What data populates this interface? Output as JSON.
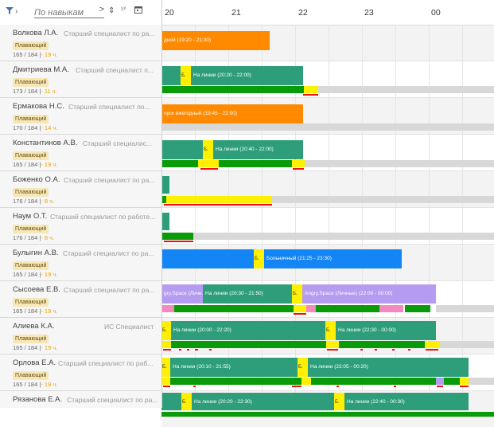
{
  "toolbar": {
    "filter_icon": "filter-icon",
    "search_placeholder": "По навыкам",
    "search_arrow": ">",
    "sort_icon": "sort-icon",
    "x_icon": "yx-icon",
    "calendar_icon": "calendar-icon"
  },
  "timeline": {
    "hours": [
      "20",
      "21",
      "22",
      "23",
      "00"
    ]
  },
  "employees": [
    {
      "name": "Волкова Л.А.",
      "role": "Старший специалист по ра...",
      "badge": "Плавающий",
      "hours": "165 / 184 |",
      "overtime": "- 19 ч."
    },
    {
      "name": "Дмитриева М.А.",
      "role": "Старший специалист п...",
      "badge": "Плавающий",
      "hours": "173 / 184 |",
      "overtime": "- 11 ч."
    },
    {
      "name": "Ермакова Н.С.",
      "role": "Старший специалист по...",
      "badge": "Плавающий",
      "hours": "170 / 184 |",
      "overtime": "- 14 ч."
    },
    {
      "name": "Константинов А.В.",
      "role": "Старший специалис...",
      "badge": "Плавающий",
      "hours": "165 / 184 |",
      "overtime": "- 19 ч."
    },
    {
      "name": "Боженко О.А.",
      "role": "Старший специалист по ра...",
      "badge": "Плавающий",
      "hours": "176 / 184 |",
      "overtime": "- 8 ч."
    },
    {
      "name": "Наум О.Т.",
      "role": "Старший специалист по работе...",
      "badge": "Плавающий",
      "hours": "176 / 184 |",
      "overtime": "- 8 ч."
    },
    {
      "name": "Булыгин А.В.",
      "role": "Старший специалист по ра...",
      "badge": "Плавающий",
      "hours": "165 / 184 |",
      "overtime": "- 19 ч."
    },
    {
      "name": "Сысоева Е.В.",
      "role": "Старший специалист по ра...",
      "badge": "Плавающий",
      "hours": "165 / 184 |",
      "overtime": "- 19 ч."
    },
    {
      "name": "Алиева К.А.",
      "role": "ИС Специалист",
      "badge": "Плавающий",
      "hours": "165 / 184 |",
      "overtime": "- 19 ч."
    },
    {
      "name": "Орлова Е.А.",
      "role": "Старший специалист по раб...",
      "badge": "Плавающий",
      "hours": "165 / 184 |",
      "overtime": "- 19 ч."
    },
    {
      "name": "Рязанова Е.А.",
      "role": "Старший специалист по ра...",
      "badge": "",
      "hours": "",
      "overtime": ""
    }
  ],
  "blocks": {
    "volkova_main": "дной (19:20 - 21:30)",
    "dmitrieva_b": "Б.",
    "dmitrieva_line": "На линии (20:20 - 22:00)",
    "ermakova_main": "пуск ежегодный (19:45 - 22:00)",
    "konst_b": "Б.",
    "konst_line": "На линии (20:40 - 22:00)",
    "bulygin_b": "Б.",
    "bulygin_main": "Больничный (21:25 - 23:30)",
    "sysoeva_angry1": "gry.Space (Личн...",
    "sysoeva_line": "На линии (20:30 - 21:50)",
    "sysoeva_b": "Б.",
    "sysoeva_angry2": "Angry.Space (Личные) (22:00 - 00:00)",
    "alieva_b1": "Б.",
    "alieva_line1": "На линии (20:00 - 22:20)",
    "alieva_b2": "Б.",
    "alieva_line2": "На линии (22:30 - 00:00)",
    "orlova_b1": "Б.",
    "orlova_line1": "На линии (20:10 - 21:55)",
    "orlova_b2": "Б.",
    "orlova_line2": "На линии (22:05 - 00:20)",
    "ryazanova_b1": "Б.",
    "ryazanova_line1": "На линии (20:20 - 22:30)",
    "ryazanova_b2": "Б.",
    "ryazanova_line2": "На линии (22:40 - 00:30)"
  }
}
